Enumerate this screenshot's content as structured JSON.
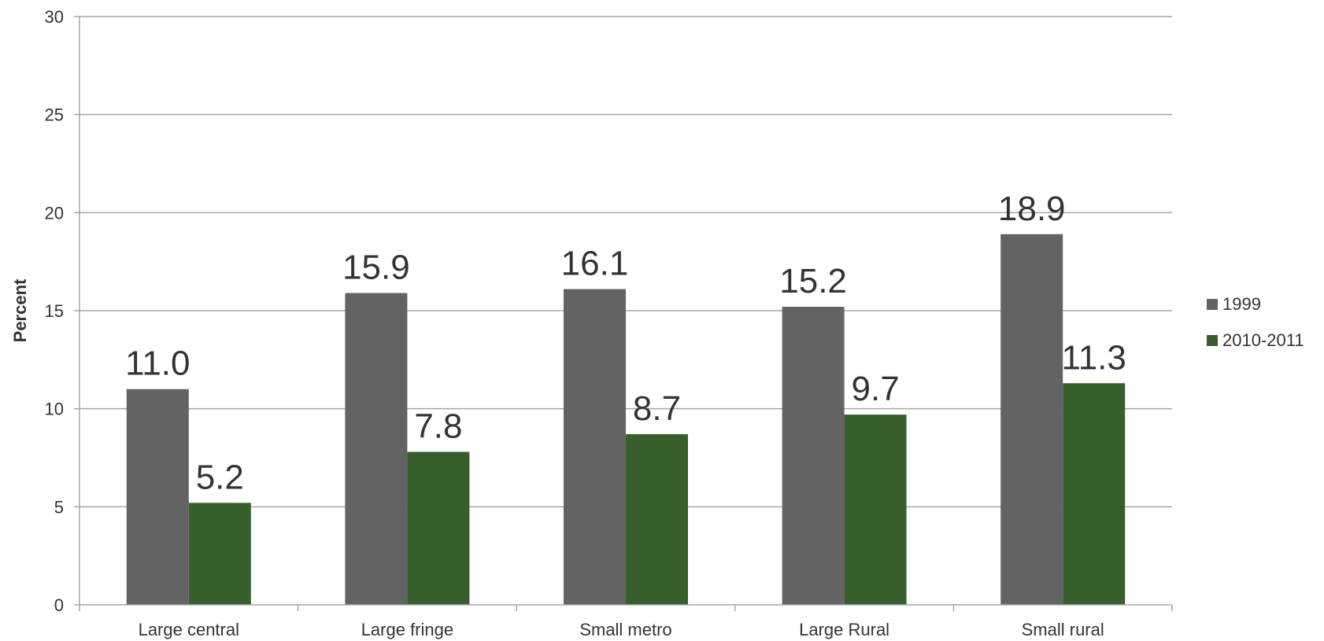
{
  "chart_data": {
    "type": "bar",
    "categories": [
      "Large central",
      "Large fringe",
      "Small metro",
      "Large Rural",
      "Small rural"
    ],
    "series": [
      {
        "name": "1999",
        "values": [
          11.0,
          15.9,
          16.1,
          15.2,
          18.9
        ],
        "color": "#636363"
      },
      {
        "name": "2010-2011",
        "values": [
          5.2,
          7.8,
          8.7,
          9.7,
          11.3
        ],
        "color": "#375F2C"
      }
    ],
    "data_labels": [
      [
        "11.0",
        "15.9",
        "16.1",
        "15.2",
        "18.9"
      ],
      [
        "5.2",
        "7.8",
        "8.7",
        "9.7",
        "11.3"
      ]
    ],
    "title": "",
    "xlabel": "",
    "ylabel": "Percent",
    "ylim": [
      0,
      30
    ],
    "yticks": [
      "0",
      "5",
      "10",
      "15",
      "20",
      "25",
      "30"
    ],
    "grid": true,
    "legend_position": "right"
  }
}
